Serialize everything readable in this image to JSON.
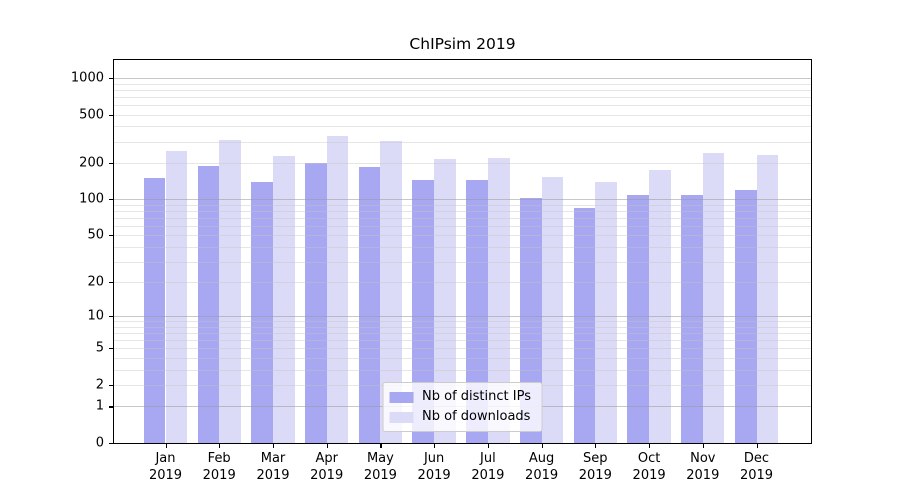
{
  "chart_data": {
    "type": "bar",
    "title": "ChIPsim 2019",
    "categories": [
      "Jan",
      "Feb",
      "Mar",
      "Apr",
      "May",
      "Jun",
      "Jul",
      "Aug",
      "Sep",
      "Oct",
      "Nov",
      "Dec"
    ],
    "x_tick_second_line": "2019",
    "series": [
      {
        "name": "Nb of distinct IPs",
        "color": "#a7a7f2",
        "values": [
          149,
          189,
          140,
          199,
          186,
          145,
          145,
          102,
          84,
          108,
          109,
          120
        ]
      },
      {
        "name": "Nb of downloads",
        "color": "#dbdbf8",
        "values": [
          250,
          309,
          228,
          335,
          301,
          215,
          218,
          154,
          138,
          175,
          240,
          233
        ]
      }
    ],
    "y_ticks": [
      0,
      1,
      2,
      5,
      10,
      20,
      50,
      100,
      200,
      500,
      1000
    ],
    "y_scale": "log10(value+1)",
    "ylim": [
      0,
      1400
    ],
    "grid": "horizontal major and minor log gridlines",
    "major_grid_values": [
      1,
      10,
      100,
      1000
    ],
    "minor_grid_values": [
      2,
      3,
      4,
      5,
      6,
      7,
      8,
      9,
      20,
      30,
      40,
      50,
      60,
      70,
      80,
      90,
      200,
      300,
      400,
      500,
      600,
      700,
      800,
      900
    ],
    "major_grid_color": "#9a9a9a",
    "minor_grid_color": "#c4c4c4",
    "axis_color": "#000000",
    "background_color": "#ffffff",
    "legend_position": "lower center"
  }
}
